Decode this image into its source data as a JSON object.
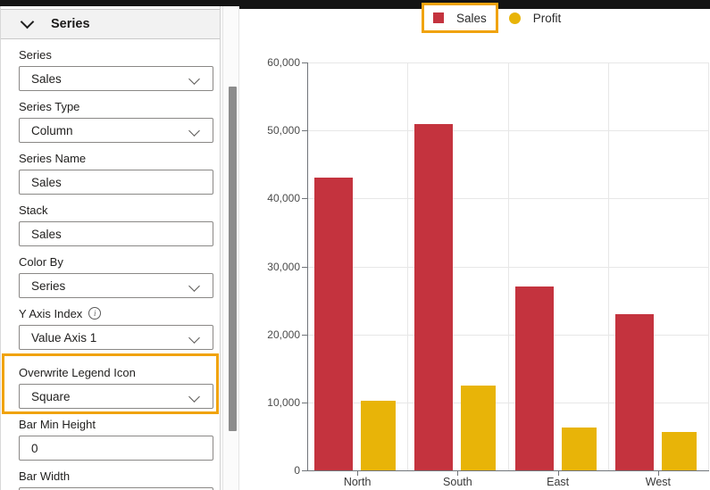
{
  "highlight_color": "#F0A30C",
  "panel": {
    "header": "Series",
    "fields": [
      {
        "label": "Series",
        "type": "dropdown",
        "value": "Sales"
      },
      {
        "label": "Series Type",
        "type": "dropdown",
        "value": "Column"
      },
      {
        "label": "Series Name",
        "type": "text",
        "value": "Sales"
      },
      {
        "label": "Stack",
        "type": "text",
        "value": "Sales"
      },
      {
        "label": "Color By",
        "type": "dropdown",
        "value": "Series"
      },
      {
        "label": "Y Axis Index",
        "type": "dropdown",
        "value": "Value Axis 1",
        "info": true
      },
      {
        "label": "Overwrite Legend Icon",
        "type": "dropdown",
        "value": "Square",
        "highlighted": true
      },
      {
        "label": "Bar Min Height",
        "type": "text",
        "value": "0"
      },
      {
        "label": "Bar Width",
        "type": "text",
        "value": ""
      }
    ]
  },
  "legend": {
    "items": [
      {
        "label": "Sales",
        "shape": "square",
        "color": "#C4333E",
        "highlighted": true
      },
      {
        "label": "Profit",
        "shape": "circle",
        "color": "#E8B408",
        "highlighted": false
      }
    ]
  },
  "chart_data": {
    "type": "bar",
    "categories": [
      "North",
      "South",
      "East",
      "West"
    ],
    "series": [
      {
        "name": "Sales",
        "color": "#C4333E",
        "values": [
          43000,
          51000,
          27000,
          23000
        ]
      },
      {
        "name": "Profit",
        "color": "#E8B408",
        "values": [
          10200,
          12500,
          6300,
          5700
        ]
      }
    ],
    "title": "",
    "xlabel": "",
    "ylabel": "",
    "ylim": [
      0,
      60000
    ],
    "y_ticks": [
      0,
      10000,
      20000,
      30000,
      40000,
      50000,
      60000
    ],
    "grid": true,
    "legend_position": "top"
  }
}
